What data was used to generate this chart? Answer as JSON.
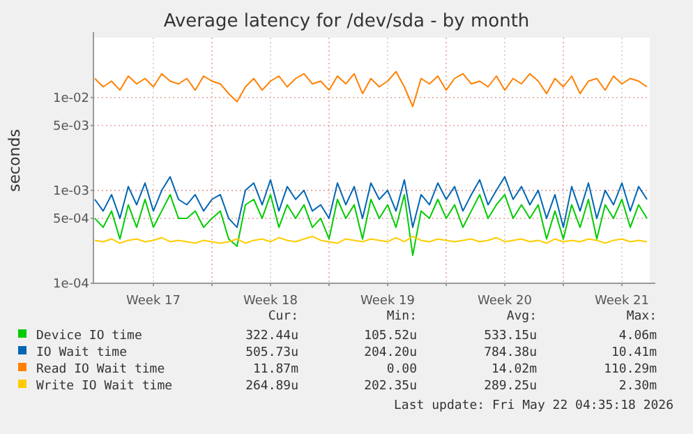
{
  "chart_data": {
    "type": "line",
    "title": "Average latency for /dev/sda - by month",
    "ylabel": "seconds",
    "log": "y",
    "grid": true,
    "legend": "bottom",
    "line_style": "solid",
    "xlim": [
      "2026-04-19T22:00",
      "2026-05-23T04:00"
    ],
    "xticks": [
      {
        "value": "2026-04-23T12:00",
        "label": "Week 17"
      },
      {
        "value": "2026-04-27T00:00",
        "label": null
      },
      {
        "value": "2026-04-30T12:00",
        "label": "Week 18"
      },
      {
        "value": "2026-05-04T00:00",
        "label": null
      },
      {
        "value": "2026-05-07T12:00",
        "label": "Week 19"
      },
      {
        "value": "2026-05-11T00:00",
        "label": null
      },
      {
        "value": "2026-05-14T12:00",
        "label": "Week 20"
      },
      {
        "value": "2026-05-18T00:00",
        "label": null
      },
      {
        "value": "2026-05-21T12:00",
        "label": "Week 21"
      }
    ],
    "ylim": [
      0.0001,
      0.044
    ],
    "yticks": [
      {
        "value": 0.0001,
        "label": "1e-04"
      },
      {
        "value": 0.0005,
        "label": "5e-04"
      },
      {
        "value": 0.001,
        "label": "1e-03"
      },
      {
        "value": 0.005,
        "label": "5e-03"
      },
      {
        "value": 0.01,
        "label": "1e-02"
      }
    ],
    "x": [
      "2026-04-20T00:00",
      "2026-04-20T12:00",
      "2026-04-21T00:00",
      "2026-04-21T12:00",
      "2026-04-22T00:00",
      "2026-04-22T12:00",
      "2026-04-23T00:00",
      "2026-04-23T12:00",
      "2026-04-24T00:00",
      "2026-04-24T12:00",
      "2026-04-25T00:00",
      "2026-04-25T12:00",
      "2026-04-26T00:00",
      "2026-04-26T12:00",
      "2026-04-27T00:00",
      "2026-04-27T12:00",
      "2026-04-28T00:00",
      "2026-04-28T12:00",
      "2026-04-29T00:00",
      "2026-04-29T12:00",
      "2026-04-30T00:00",
      "2026-04-30T12:00",
      "2026-05-01T00:00",
      "2026-05-01T12:00",
      "2026-05-02T00:00",
      "2026-05-02T12:00",
      "2026-05-03T00:00",
      "2026-05-03T12:00",
      "2026-05-04T00:00",
      "2026-05-04T12:00",
      "2026-05-05T00:00",
      "2026-05-05T12:00",
      "2026-05-06T00:00",
      "2026-05-06T12:00",
      "2026-05-07T00:00",
      "2026-05-07T12:00",
      "2026-05-08T00:00",
      "2026-05-08T12:00",
      "2026-05-09T00:00",
      "2026-05-09T12:00",
      "2026-05-10T00:00",
      "2026-05-10T12:00",
      "2026-05-11T00:00",
      "2026-05-11T12:00",
      "2026-05-12T00:00",
      "2026-05-12T12:00",
      "2026-05-13T00:00",
      "2026-05-13T12:00",
      "2026-05-14T00:00",
      "2026-05-14T12:00",
      "2026-05-15T00:00",
      "2026-05-15T12:00",
      "2026-05-16T00:00",
      "2026-05-16T12:00",
      "2026-05-17T00:00",
      "2026-05-17T12:00",
      "2026-05-18T00:00",
      "2026-05-18T12:00",
      "2026-05-19T00:00",
      "2026-05-19T12:00",
      "2026-05-20T00:00",
      "2026-05-20T12:00",
      "2026-05-21T00:00",
      "2026-05-21T12:00",
      "2026-05-22T00:00",
      "2026-05-22T12:00",
      "2026-05-23T00:00"
    ],
    "series": [
      {
        "name": "Device IO time",
        "color": "#00cc00",
        "values": [
          0.0005,
          0.0004,
          0.0006,
          0.0003,
          0.0007,
          0.0004,
          0.0008,
          0.0004,
          0.0006,
          0.0009,
          0.0005,
          0.0005,
          0.0006,
          0.0004,
          0.0005,
          0.0006,
          0.0003,
          0.00025,
          0.0007,
          0.0008,
          0.0005,
          0.0009,
          0.0004,
          0.0007,
          0.0005,
          0.0007,
          0.0004,
          0.0005,
          0.0003,
          0.0008,
          0.0005,
          0.0007,
          0.0003,
          0.0008,
          0.0005,
          0.0007,
          0.0004,
          0.0009,
          0.0002,
          0.0006,
          0.0005,
          0.0008,
          0.0005,
          0.0007,
          0.0004,
          0.0006,
          0.0009,
          0.0005,
          0.0007,
          0.0009,
          0.0005,
          0.0007,
          0.0005,
          0.0007,
          0.0003,
          0.0006,
          0.0003,
          0.0007,
          0.0004,
          0.0008,
          0.0003,
          0.0007,
          0.0005,
          0.0008,
          0.0004,
          0.0007,
          0.0005
        ]
      },
      {
        "name": "IO Wait time",
        "color": "#0066b3",
        "values": [
          0.0008,
          0.0006,
          0.0009,
          0.0005,
          0.0011,
          0.0007,
          0.0012,
          0.0006,
          0.001,
          0.0014,
          0.0008,
          0.0007,
          0.0009,
          0.0006,
          0.0008,
          0.0009,
          0.0005,
          0.0004,
          0.001,
          0.0012,
          0.0007,
          0.0013,
          0.0006,
          0.0011,
          0.0008,
          0.001,
          0.0006,
          0.0007,
          0.0005,
          0.0012,
          0.0007,
          0.0011,
          0.0005,
          0.0012,
          0.0008,
          0.001,
          0.0006,
          0.0013,
          0.0004,
          0.0009,
          0.0007,
          0.0012,
          0.0008,
          0.0011,
          0.0006,
          0.0009,
          0.0013,
          0.0007,
          0.001,
          0.0014,
          0.0008,
          0.0011,
          0.0007,
          0.001,
          0.0005,
          0.0009,
          0.0004,
          0.0011,
          0.0006,
          0.0012,
          0.0005,
          0.001,
          0.0007,
          0.0012,
          0.0006,
          0.0011,
          0.0008
        ]
      },
      {
        "name": "Read IO Wait time",
        "color": "#ff8000",
        "values": [
          0.016,
          0.013,
          0.015,
          0.012,
          0.017,
          0.014,
          0.016,
          0.013,
          0.018,
          0.015,
          0.014,
          0.016,
          0.012,
          0.017,
          0.015,
          0.014,
          0.011,
          0.009,
          0.013,
          0.016,
          0.012,
          0.015,
          0.017,
          0.013,
          0.016,
          0.018,
          0.014,
          0.015,
          0.012,
          0.017,
          0.014,
          0.018,
          0.011,
          0.016,
          0.013,
          0.015,
          0.019,
          0.013,
          0.008,
          0.016,
          0.014,
          0.017,
          0.012,
          0.016,
          0.018,
          0.014,
          0.015,
          0.013,
          0.017,
          0.012,
          0.016,
          0.014,
          0.018,
          0.015,
          0.011,
          0.016,
          0.013,
          0.017,
          0.011,
          0.015,
          0.016,
          0.012,
          0.017,
          0.014,
          0.016,
          0.015,
          0.013
        ]
      },
      {
        "name": "Write IO Wait time",
        "color": "#ffcc00",
        "values": [
          0.00029,
          0.00028,
          0.0003,
          0.00027,
          0.00029,
          0.0003,
          0.00028,
          0.00029,
          0.00031,
          0.00028,
          0.00029,
          0.00028,
          0.00027,
          0.00029,
          0.00028,
          0.00027,
          0.00028,
          0.0003,
          0.00027,
          0.00029,
          0.0003,
          0.00028,
          0.00031,
          0.00029,
          0.00028,
          0.0003,
          0.00032,
          0.00029,
          0.00028,
          0.00027,
          0.0003,
          0.00029,
          0.00028,
          0.0003,
          0.00029,
          0.00028,
          0.00031,
          0.00028,
          0.00032,
          0.00029,
          0.00028,
          0.0003,
          0.00029,
          0.00028,
          0.00029,
          0.0003,
          0.00028,
          0.00029,
          0.00031,
          0.00028,
          0.00029,
          0.0003,
          0.00028,
          0.00029,
          0.00027,
          0.0003,
          0.00028,
          0.00029,
          0.00028,
          0.0003,
          0.00029,
          0.00027,
          0.00029,
          0.0003,
          0.00028,
          0.00029,
          0.00028
        ]
      }
    ],
    "annotations": [
      "Cur:",
      "Min:",
      "Avg:",
      "Max:",
      "322.44u",
      "105.52u",
      "533.15u",
      "4.06m",
      "505.73u",
      "204.20u",
      "784.38u",
      "10.41m",
      "11.87m",
      "0.00",
      "14.02m",
      "110.29m",
      "264.89u",
      "202.35u",
      "289.25u",
      "2.30m",
      "Last update: Fri May 22 04:35:18 2026"
    ]
  }
}
